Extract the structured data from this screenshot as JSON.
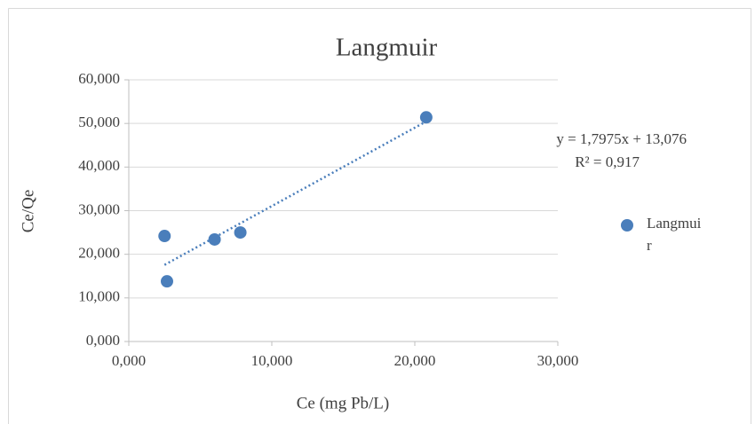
{
  "chart_data": {
    "type": "scatter",
    "title": "Langmuir",
    "xlabel": "Ce (mg Pb/L)",
    "ylabel": "Ce/Qe",
    "series": [
      {
        "name": "Langmuir",
        "color": "#4a7ebb",
        "x": [
          2.5,
          2.67,
          6.0,
          7.8,
          20.8
        ],
        "values": [
          24.2,
          13.8,
          23.4,
          25.0,
          51.4
        ]
      }
    ],
    "trendline": {
      "slope": 1.7975,
      "intercept": 13.076,
      "equation": "y = 1,7975x + 13,076",
      "r2": "R² = 0,917"
    },
    "xlim": [
      0,
      30
    ],
    "xticks": [
      {
        "value": 0,
        "label": "0,000"
      },
      {
        "value": 10,
        "label": "10,000"
      },
      {
        "value": 20,
        "label": "20,000"
      },
      {
        "value": 30,
        "label": "30,000"
      }
    ],
    "ylim": [
      0,
      60
    ],
    "yticks": [
      {
        "value": 0,
        "label": "0,000"
      },
      {
        "value": 10,
        "label": "10,000"
      },
      {
        "value": 20,
        "label": "20,000"
      },
      {
        "value": 30,
        "label": "30,000"
      },
      {
        "value": 40,
        "label": "40,000"
      },
      {
        "value": 50,
        "label": "50,000"
      },
      {
        "value": 60,
        "label": "60,000"
      }
    ],
    "grid": true,
    "legend": "right"
  }
}
